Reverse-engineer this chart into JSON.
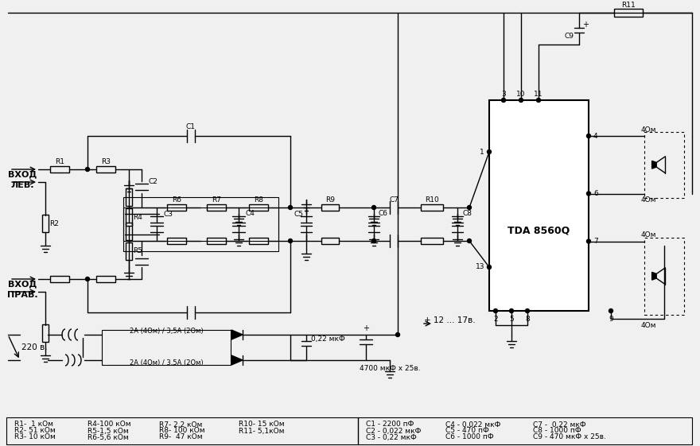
{
  "bg_color": "#f0f0f0",
  "line_color": "#000000",
  "ic_label": "TDA 8560Q",
  "vhod_lev": "ВХОД\nЛЕВ.",
  "vhod_prav": "ВХОД\nПРАВ.",
  "v220": "220 в.",
  "v12_17": "+ 12 ... 17в.",
  "diode_label1": "2А (4Ом) / 3,5А (2Ом)",
  "diode_label2": "2А (4Ом) / 3,5А (2Ом)",
  "c_filter1": "0,22 мкФ",
  "c_filter2": "4700 мкФ х 25в.",
  "table_R_col1": [
    "R1-  1 кОм",
    "R2- 51 кОм",
    "R3- 10 кОм"
  ],
  "table_R_col2": [
    "R4-100 кОм",
    "R5-1,5 кОм",
    "R6-5,6 кОм"
  ],
  "table_R_col3": [
    "R7- 2,2 кОм",
    "R8- 100 кОм",
    "R9-  47 кОм"
  ],
  "table_R_col4": [
    "R10- 15 кОм",
    "R11- 5,1кОм",
    ""
  ],
  "table_C_col1": [
    "C1 - 2200 пФ",
    "C2 - 0,022 мкФ",
    "C3 - 0,22 мкФ"
  ],
  "table_C_col2": [
    "C4 - 0,022 мкФ",
    "C5 - 470 пФ",
    "C6 - 1000 пФ"
  ],
  "table_C_col3": [
    "C7 -  0,22 мкФ",
    "C8 - 1000 пФ",
    "C9 - 470 мкФ х 25в."
  ],
  "spk_labels": [
    "4Ом",
    "4Ом",
    "4Ом",
    "4Ом"
  ],
  "pin_labels": [
    "1",
    "13",
    "3",
    "10",
    "11",
    "4",
    "6",
    "7",
    "9",
    "2",
    "5",
    "8"
  ],
  "c1_label": "C1",
  "c2_label": "C2",
  "c3_label": "C3",
  "c4_label": "C4",
  "c5_label": "C5",
  "c6_label": "C6",
  "c7_label": "C7",
  "c8_label": "C8",
  "c9_label": "C9",
  "r1_label": "R1",
  "r2_label": "R2",
  "r3_label": "R3",
  "r4_label": "R4",
  "r5_label": "R5",
  "r6_label": "R6",
  "r7_label": "R7",
  "r8_label": "R8",
  "r9_label": "R9",
  "r10_label": "R10",
  "r11_label": "R11"
}
